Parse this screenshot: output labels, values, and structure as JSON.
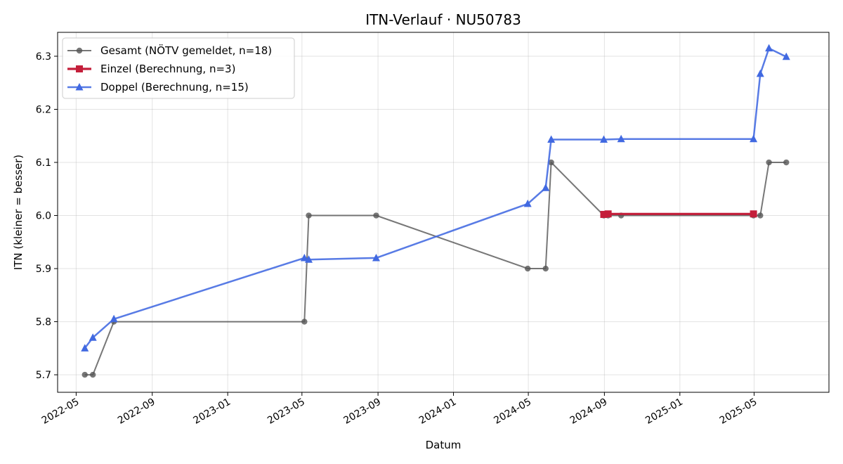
{
  "chart_data": {
    "type": "line",
    "title": "ITN-Verlauf · NU50783",
    "xlabel": "Datum",
    "ylabel": "ITN  (kleiner = besser)",
    "x_type": "date",
    "xlim": [
      "2022-04-01",
      "2025-08-30"
    ],
    "ylim": [
      5.667,
      6.345
    ],
    "x_ticks": [
      "2022-05-01",
      "2022-09-01",
      "2023-01-01",
      "2023-05-01",
      "2023-09-01",
      "2024-01-01",
      "2024-05-01",
      "2024-09-01",
      "2025-01-01",
      "2025-05-01"
    ],
    "x_tick_labels": [
      "2022-05",
      "2022-09",
      "2023-01",
      "2023-05",
      "2023-09",
      "2024-01",
      "2024-05",
      "2024-09",
      "2025-01",
      "2025-05"
    ],
    "y_ticks": [
      5.7,
      5.8,
      5.9,
      6.0,
      6.1,
      6.2,
      6.3
    ],
    "y_tick_labels": [
      "5.7",
      "5.8",
      "5.9",
      "6.0",
      "6.1",
      "6.2",
      "6.3"
    ],
    "grid": true,
    "legend_position": "top-left",
    "series": [
      {
        "name": "Gesamt (NÖTV gemeldet, n=18)",
        "color": "#555555",
        "marker": "circle",
        "points": [
          [
            "2022-05-15",
            5.7
          ],
          [
            "2022-05-28",
            5.7
          ],
          [
            "2022-07-01",
            5.8
          ],
          [
            "2023-05-05",
            5.8
          ],
          [
            "2023-05-12",
            6.0
          ],
          [
            "2023-08-29",
            6.0
          ],
          [
            "2024-04-30",
            5.9
          ],
          [
            "2024-05-29",
            5.9
          ],
          [
            "2024-06-07",
            6.1
          ],
          [
            "2024-08-31",
            6.0
          ],
          [
            "2024-09-07",
            6.0
          ],
          [
            "2024-09-28",
            6.0
          ],
          [
            "2025-04-30",
            6.0
          ],
          [
            "2025-05-11",
            6.0
          ],
          [
            "2025-05-25",
            6.1
          ],
          [
            "2025-06-22",
            6.1
          ]
        ]
      },
      {
        "name": "Einzel (Berechnung, n=3)",
        "color": "#c41e3a",
        "marker": "square",
        "points": [
          [
            "2024-08-31",
            6.002
          ],
          [
            "2024-09-07",
            6.003
          ],
          [
            "2025-04-30",
            6.003
          ]
        ]
      },
      {
        "name": "Doppel (Berechnung, n=15)",
        "color": "#4169e1",
        "marker": "triangle",
        "points": [
          [
            "2022-05-15",
            5.75
          ],
          [
            "2022-05-28",
            5.77
          ],
          [
            "2022-07-01",
            5.805
          ],
          [
            "2023-05-05",
            5.92
          ],
          [
            "2023-05-12",
            5.917
          ],
          [
            "2023-08-29",
            5.92
          ],
          [
            "2024-04-30",
            6.022
          ],
          [
            "2024-05-29",
            6.052
          ],
          [
            "2024-06-07",
            6.143
          ],
          [
            "2024-08-31",
            6.143
          ],
          [
            "2024-09-28",
            6.144
          ],
          [
            "2025-04-30",
            6.144
          ],
          [
            "2025-05-11",
            6.267
          ],
          [
            "2025-05-25",
            6.315
          ],
          [
            "2025-06-22",
            6.299
          ]
        ]
      }
    ]
  }
}
